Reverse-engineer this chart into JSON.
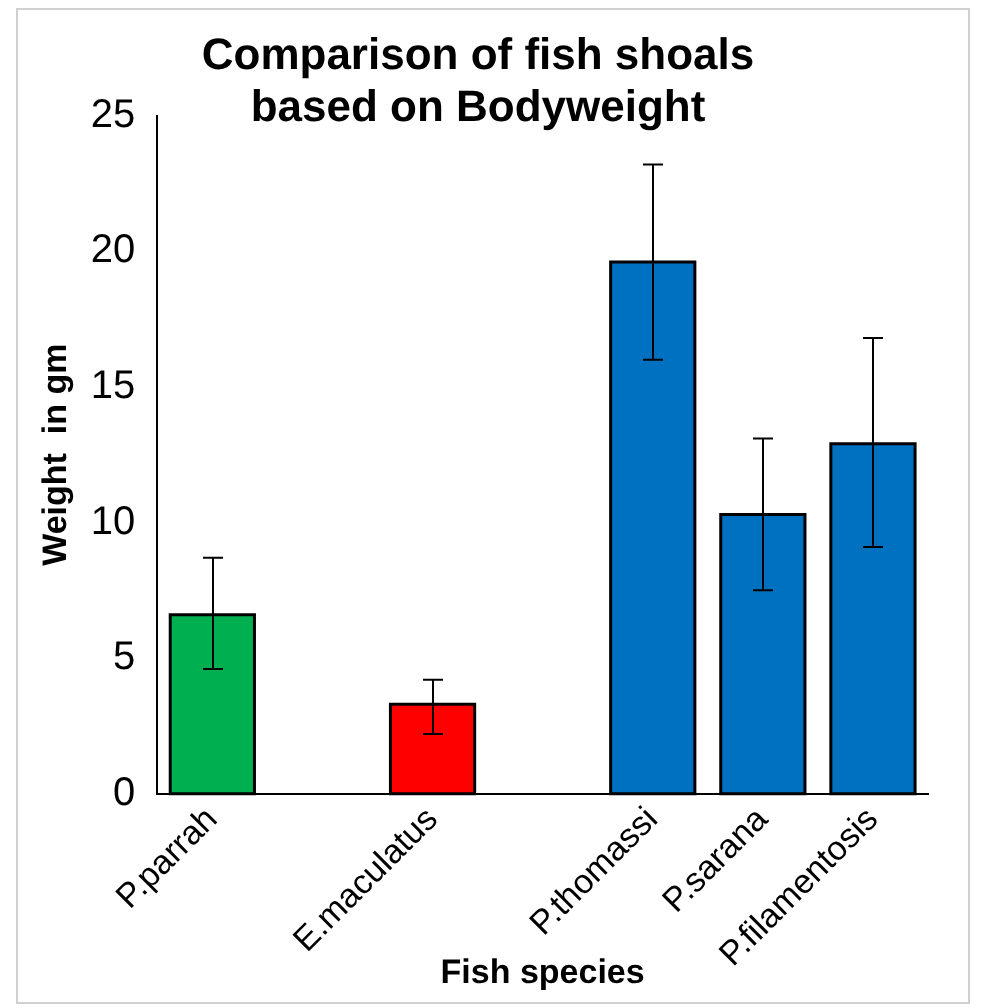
{
  "chart_data": {
    "type": "bar",
    "title": "Comparison of fish shoals based on Bodyweight",
    "xlabel": "Fish species",
    "ylabel": "Weight  in gm",
    "categories": [
      "P.parrah",
      null,
      "E.maculatus",
      null,
      "P.thomassi",
      "P.sarana",
      "P.filamentosis"
    ],
    "values": [
      6.6,
      null,
      3.3,
      null,
      19.6,
      10.3,
      12.9
    ],
    "colors": [
      "#00b050",
      "#ffffff",
      "#ff0000",
      "#ffffff",
      "#0070c0",
      "#0070c0",
      "#0070c0"
    ],
    "errors": [
      [
        4.6,
        8.7
      ],
      null,
      [
        2.2,
        4.2
      ],
      null,
      [
        16.0,
        23.2
      ],
      [
        7.5,
        13.1
      ],
      [
        9.1,
        16.8
      ]
    ],
    "ylim": [
      0,
      25
    ],
    "yticks": [
      0,
      5,
      10,
      15,
      20,
      25
    ],
    "grid": false,
    "legend": false
  }
}
